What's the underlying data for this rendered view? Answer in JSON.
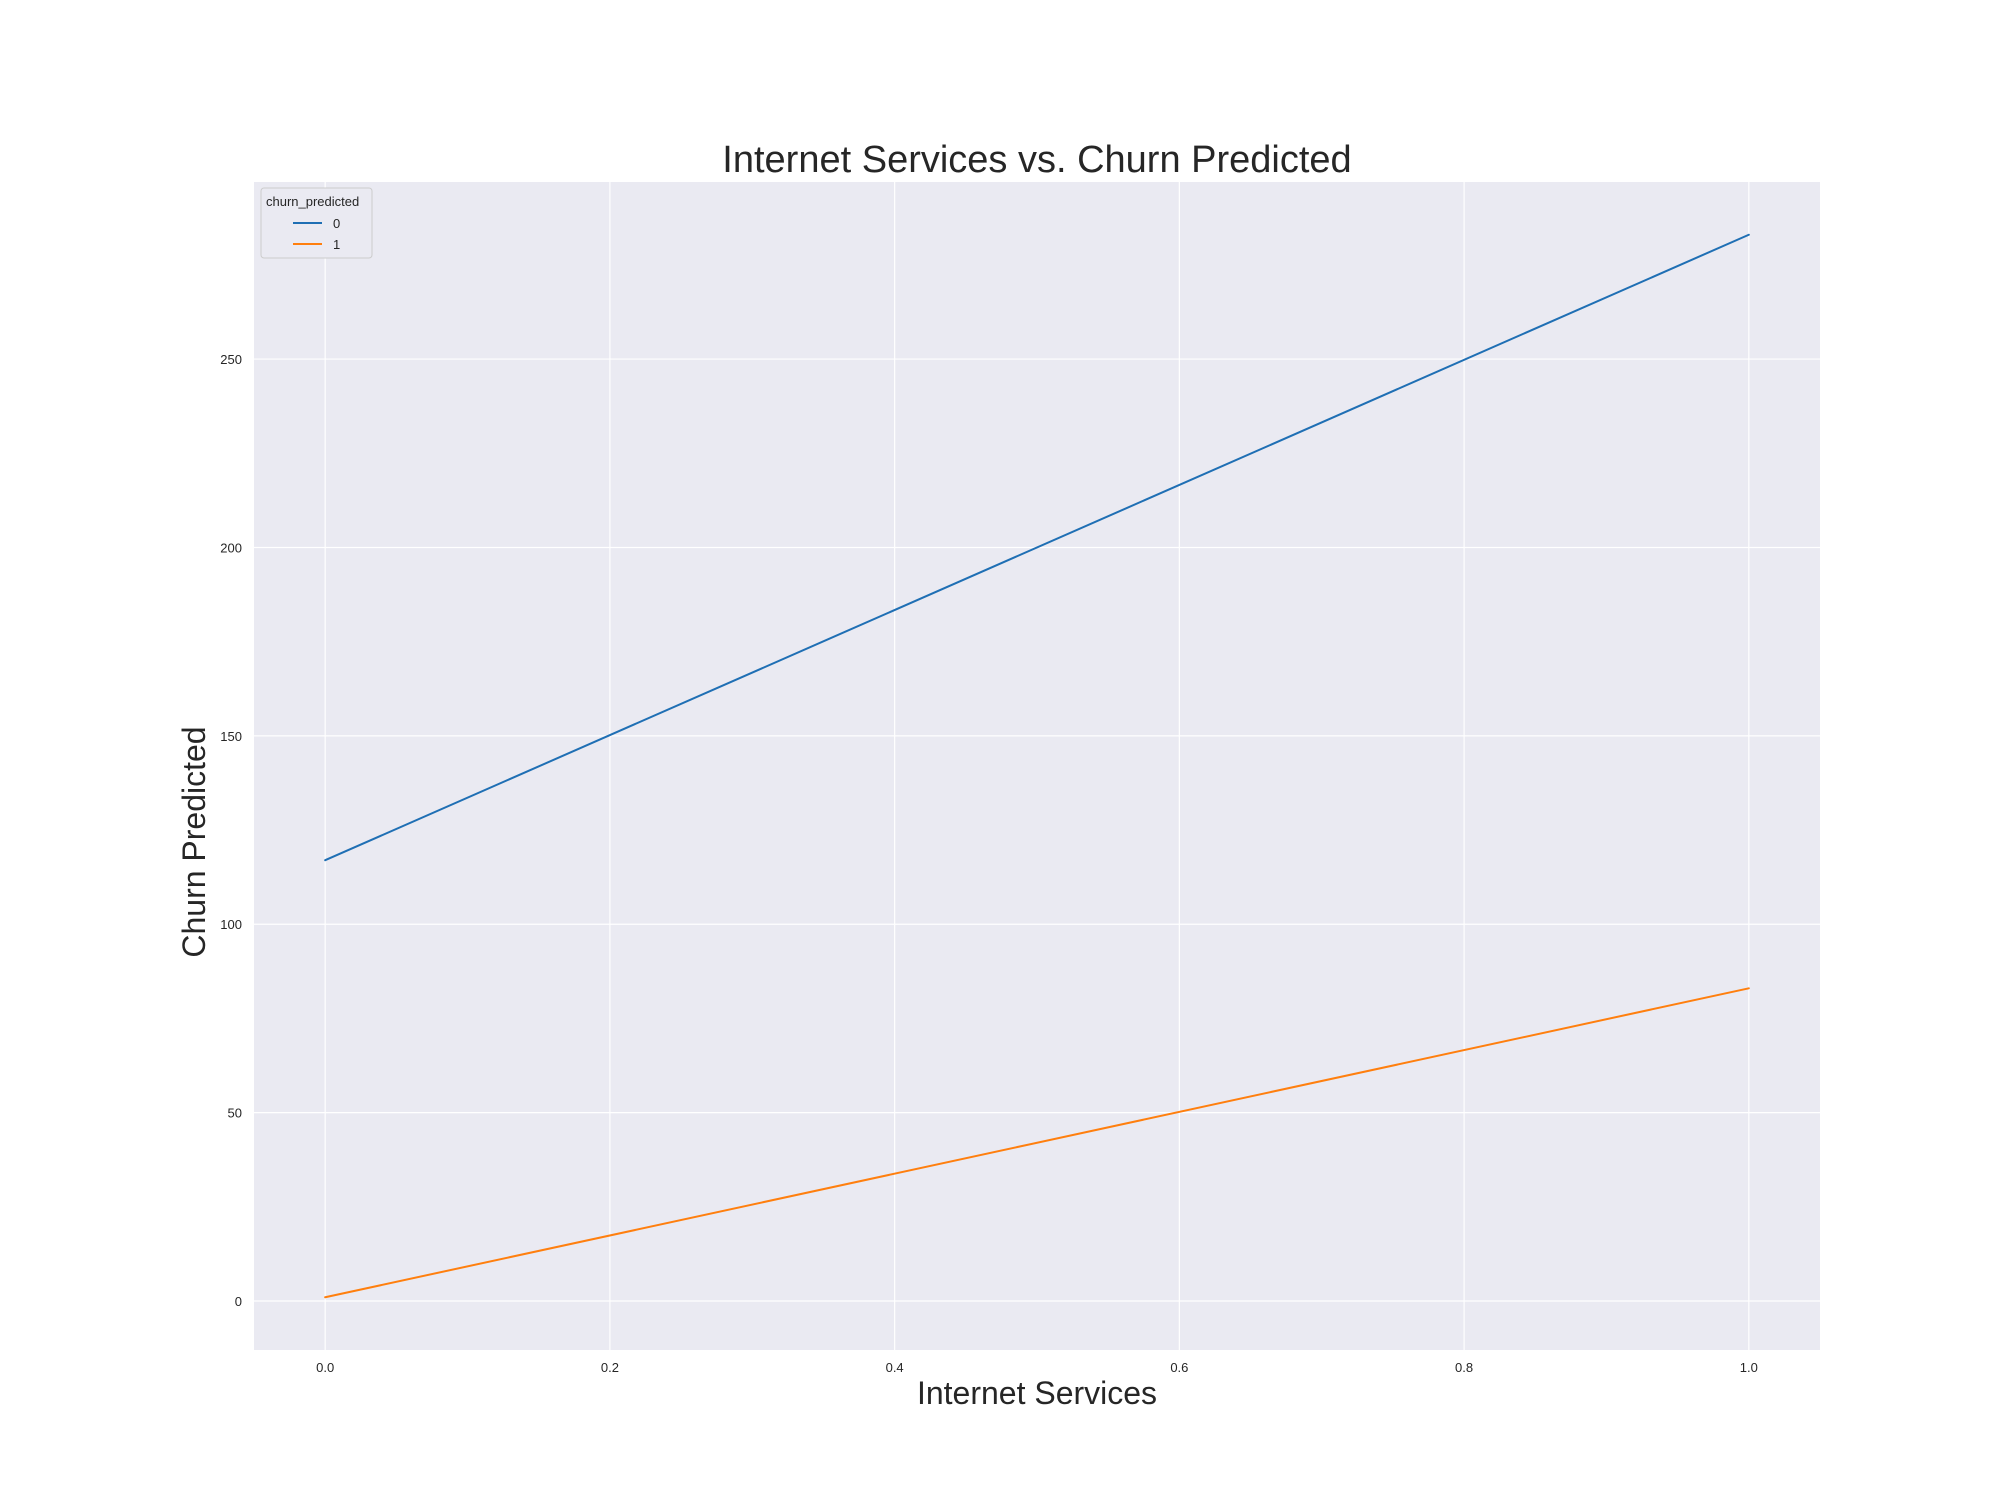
{
  "chart_data": {
    "type": "line",
    "title": "Internet Services vs. Churn Predicted",
    "xlabel": "Internet Services",
    "ylabel": "Churn Predicted",
    "x": [
      0.0,
      1.0
    ],
    "xlim": [
      -0.05,
      1.05
    ],
    "ylim": [
      -13,
      297
    ],
    "x_ticks": [
      0.0,
      0.2,
      0.4,
      0.6,
      0.8,
      1.0
    ],
    "x_tick_labels": [
      "0.0",
      "0.2",
      "0.4",
      "0.6",
      "0.8",
      "1.0"
    ],
    "y_ticks": [
      0,
      50,
      100,
      150,
      200,
      250
    ],
    "y_tick_labels": [
      "0",
      "50",
      "100",
      "150",
      "200",
      "250"
    ],
    "grid": true,
    "background": "#eaeaf2",
    "grid_color": "#ffffff",
    "legend": {
      "title": "churn_predicted",
      "placement": "top-left"
    },
    "series": [
      {
        "name": "0",
        "color": "#1f6fb4",
        "values": [
          117,
          283
        ]
      },
      {
        "name": "1",
        "color": "#ff7f0e",
        "values": [
          1,
          83
        ]
      }
    ]
  }
}
